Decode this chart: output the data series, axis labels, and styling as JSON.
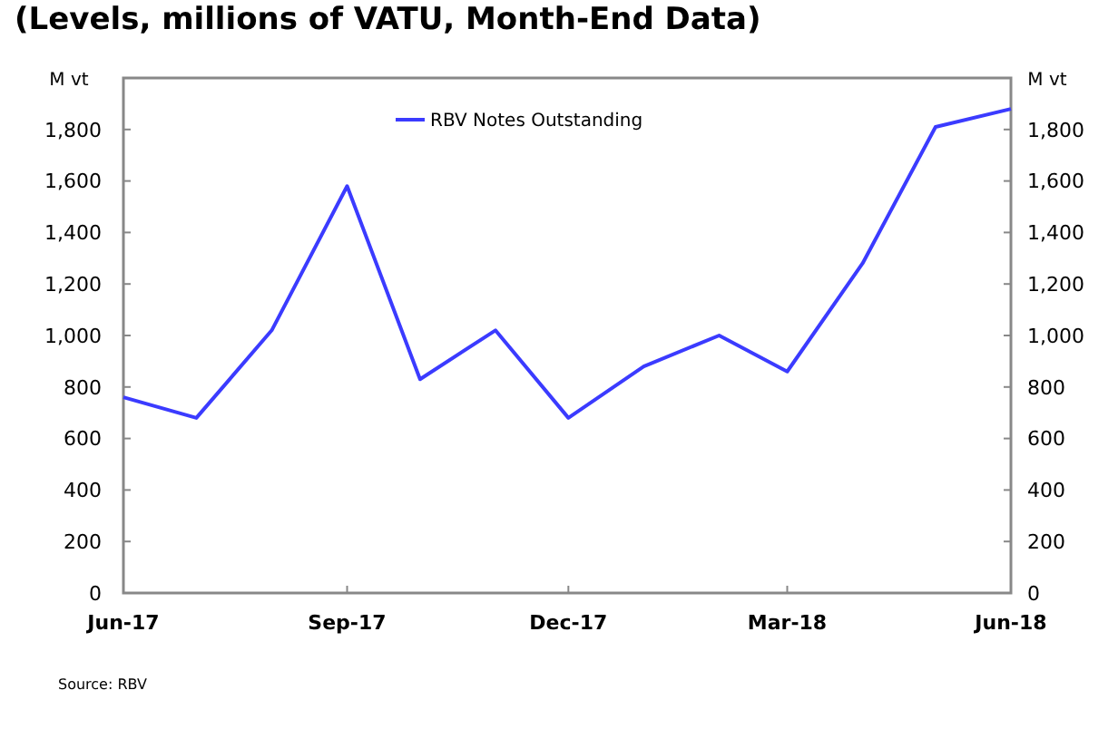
{
  "chart_data": {
    "type": "line",
    "title": "(Levels, millions of VATU, Month-End Data)",
    "ylabel": "M vt",
    "y2label": "M vt",
    "annotations": [
      "Source: RBV"
    ],
    "x": [
      "2017-06",
      "2017-07",
      "2017-08",
      "2017-09",
      "2017-10",
      "2017-11",
      "2017-12",
      "2018-01",
      "2018-02",
      "2018-03",
      "2018-04",
      "2018-05",
      "2018-06"
    ],
    "series": [
      {
        "name": "RBV Notes Outstanding",
        "color": "#3b3bff",
        "values": [
          760,
          680,
          1020,
          1580,
          830,
          1020,
          680,
          880,
          1000,
          860,
          1280,
          1810,
          1880
        ]
      }
    ],
    "xlim": [
      "2017-06",
      "2018-06"
    ],
    "xticks": [
      {
        "value": "2017-06",
        "label": "Jun-17"
      },
      {
        "value": "2017-09",
        "label": "Sep-17"
      },
      {
        "value": "2017-12",
        "label": "Dec-17"
      },
      {
        "value": "2018-03",
        "label": "Mar-18"
      },
      {
        "value": "2018-06",
        "label": "Jun-18"
      }
    ],
    "ylim": [
      0,
      2000
    ],
    "yticks": [
      0,
      200,
      400,
      600,
      800,
      {
        "value": 1000,
        "label": "1,000"
      },
      {
        "value": 1200,
        "label": "1,200"
      },
      {
        "value": 1400,
        "label": "1,400"
      },
      {
        "value": 1600,
        "label": "1,600"
      },
      {
        "value": 1800,
        "label": "1,800"
      }
    ],
    "y2lim": [
      0,
      2000
    ],
    "y2ticks": [
      0,
      200,
      400,
      600,
      800,
      {
        "value": 1000,
        "label": "1,000"
      },
      {
        "value": 1200,
        "label": "1,200"
      },
      {
        "value": 1400,
        "label": "1,400"
      },
      {
        "value": 1600,
        "label": "1,600"
      },
      {
        "value": 1800,
        "label": "1,800"
      }
    ],
    "grid": false,
    "legend": "top",
    "marker": "none",
    "line_style": "solid"
  }
}
